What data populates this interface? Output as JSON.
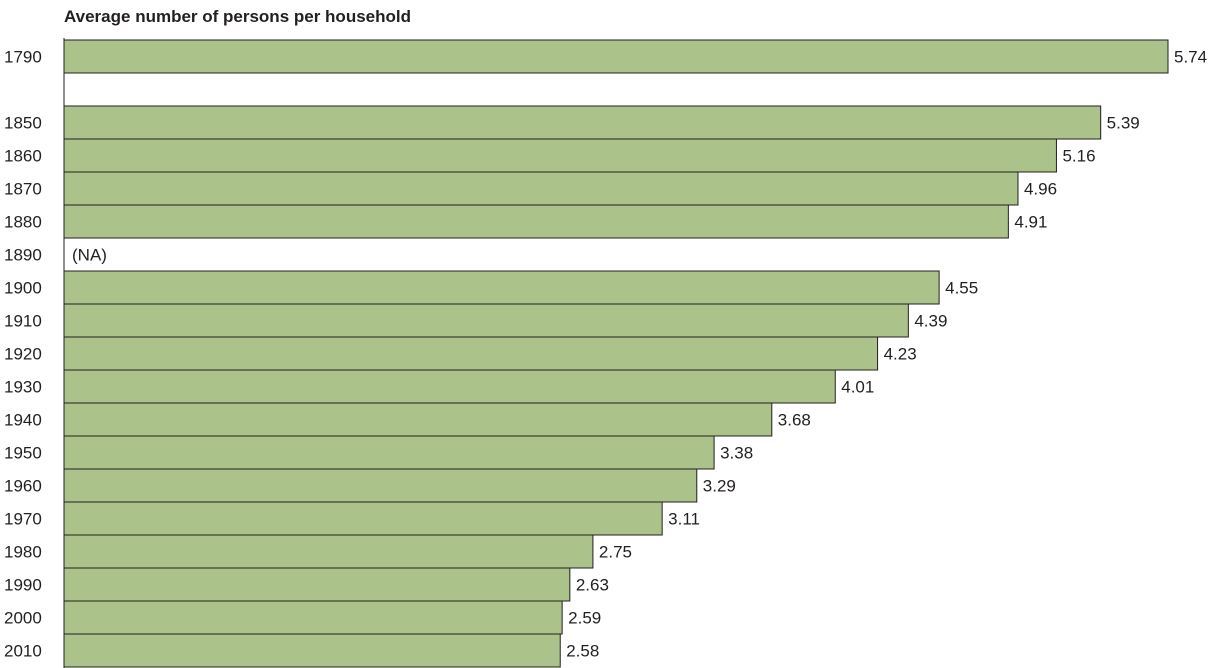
{
  "chart_data": {
    "type": "bar",
    "orientation": "horizontal",
    "title": "Average number of persons per household",
    "xlabel": "",
    "ylabel": "",
    "categories": [
      "1790",
      "1850",
      "1860",
      "1870",
      "1880",
      "1890",
      "1900",
      "1910",
      "1920",
      "1930",
      "1940",
      "1950",
      "1960",
      "1970",
      "1980",
      "1990",
      "2000",
      "2010"
    ],
    "values": [
      5.74,
      5.39,
      5.16,
      4.96,
      4.91,
      null,
      4.55,
      4.39,
      4.23,
      4.01,
      3.68,
      3.38,
      3.29,
      3.11,
      2.75,
      2.63,
      2.59,
      2.58
    ],
    "data_labels": [
      "5.74",
      "5.39",
      "5.16",
      "4.96",
      "4.91",
      "(NA)",
      "4.55",
      "4.39",
      "4.23",
      "4.01",
      "3.68",
      "3.38",
      "3.29",
      "3.11",
      "2.75",
      "2.63",
      "2.59",
      "2.58"
    ],
    "xlim": [
      0,
      5.74
    ],
    "grid": false,
    "colors": {
      "bar_fill": "#abc38b",
      "bar_stroke": "#231f20",
      "text": "#231f20"
    }
  }
}
